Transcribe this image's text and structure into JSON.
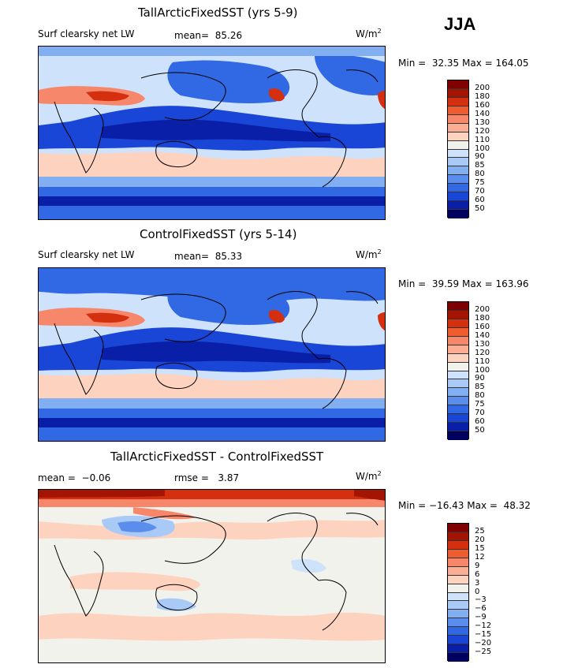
{
  "season": "JJA",
  "chart_data": [
    {
      "type": "heatmap",
      "title": "TallArcticFixedSST (yrs 5-9)",
      "variable": "Surf clearsky net LW",
      "mean_label": "mean=",
      "mean": "85.26",
      "units": "W/m",
      "units_sup": "2",
      "min_label": "Min =",
      "min": "32.35",
      "max_label": "Max =",
      "max": "164.05",
      "levels": [
        "200",
        "180",
        "160",
        "140",
        "130",
        "120",
        "110",
        "100",
        "90",
        "85",
        "80",
        "75",
        "70",
        "60",
        "50"
      ],
      "colors": [
        "#7f0000",
        "#a31502",
        "#d42f0f",
        "#ee5c2f",
        "#f7876a",
        "#fbae94",
        "#fdd3c0",
        "#f2f2ec",
        "#cfe2fb",
        "#a9c9f7",
        "#82aef2",
        "#5b8eec",
        "#3169e5",
        "#1946d6",
        "#0a1fa8",
        "#00005f"
      ]
    },
    {
      "type": "heatmap",
      "title": "ControlFixedSST (yrs 5-14)",
      "variable": "Surf clearsky net LW",
      "mean_label": "mean=",
      "mean": "85.33",
      "units": "W/m",
      "units_sup": "2",
      "min_label": "Min =",
      "min": "39.59",
      "max_label": "Max =",
      "max": "163.96",
      "levels": [
        "200",
        "180",
        "160",
        "140",
        "130",
        "120",
        "110",
        "100",
        "90",
        "85",
        "80",
        "75",
        "70",
        "60",
        "50"
      ],
      "colors": [
        "#7f0000",
        "#a31502",
        "#d42f0f",
        "#ee5c2f",
        "#f7876a",
        "#fbae94",
        "#fdd3c0",
        "#f2f2ec",
        "#cfe2fb",
        "#a9c9f7",
        "#82aef2",
        "#5b8eec",
        "#3169e5",
        "#1946d6",
        "#0a1fa8",
        "#00005f"
      ]
    },
    {
      "type": "heatmap",
      "title": "TallArcticFixedSST - ControlFixedSST",
      "mean_label": "mean =",
      "mean": "-0.06",
      "rmse_label": "rmse =",
      "rmse": "3.87",
      "units": "W/m",
      "units_sup": "2",
      "min_label": "Min =",
      "min": "-16.43",
      "max_label": "Max =",
      "max": "48.32",
      "levels": [
        "25",
        "20",
        "15",
        "12",
        "9",
        "6",
        "3",
        "0",
        "-3",
        "-6",
        "-9",
        "-12",
        "-15",
        "-20",
        "-25"
      ],
      "colors": [
        "#7f0000",
        "#a31502",
        "#d42f0f",
        "#ee5c2f",
        "#f7876a",
        "#fbae94",
        "#fdd3c0",
        "#f2f2ec",
        "#cfe2fb",
        "#a9c9f7",
        "#82aef2",
        "#5b8eec",
        "#3169e5",
        "#1946d6",
        "#0a1fa8",
        "#00005f"
      ]
    }
  ]
}
